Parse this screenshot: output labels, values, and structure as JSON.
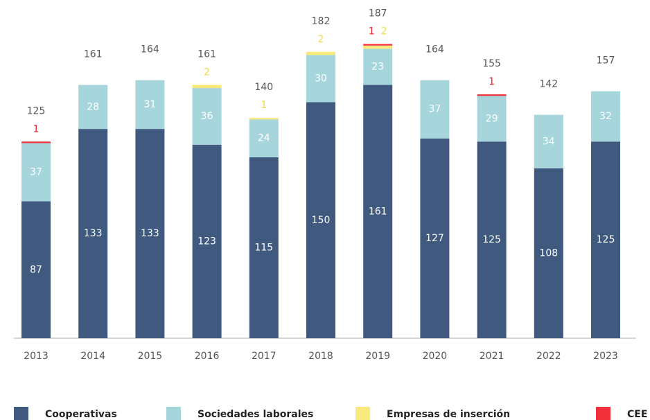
{
  "chart_data": {
    "type": "stacked_bar",
    "categories": [
      "2013",
      "2014",
      "2015",
      "2016",
      "2017",
      "2018",
      "2019",
      "2020",
      "2021",
      "2022",
      "2023"
    ],
    "series": [
      {
        "name": "Cooperativas",
        "color": "#3f5a7e",
        "values": [
          87,
          133,
          133,
          123,
          115,
          150,
          161,
          127,
          125,
          108,
          125
        ]
      },
      {
        "name": "Sociedades laborales",
        "color": "#a6d5dc",
        "values": [
          37,
          28,
          31,
          36,
          24,
          30,
          23,
          37,
          29,
          34,
          32
        ]
      },
      {
        "name": "Empresas de inserción",
        "color": "#f8e97a",
        "values": [
          null,
          null,
          null,
          2,
          1,
          2,
          2,
          null,
          null,
          null,
          null
        ]
      },
      {
        "name": "CEE",
        "color": "#f0303a",
        "values": [
          1,
          null,
          null,
          null,
          null,
          null,
          1,
          null,
          1,
          null,
          null
        ]
      }
    ],
    "totals": [
      125,
      161,
      164,
      161,
      140,
      182,
      187,
      164,
      155,
      142,
      157
    ],
    "ylim": [
      0,
      200
    ]
  }
}
